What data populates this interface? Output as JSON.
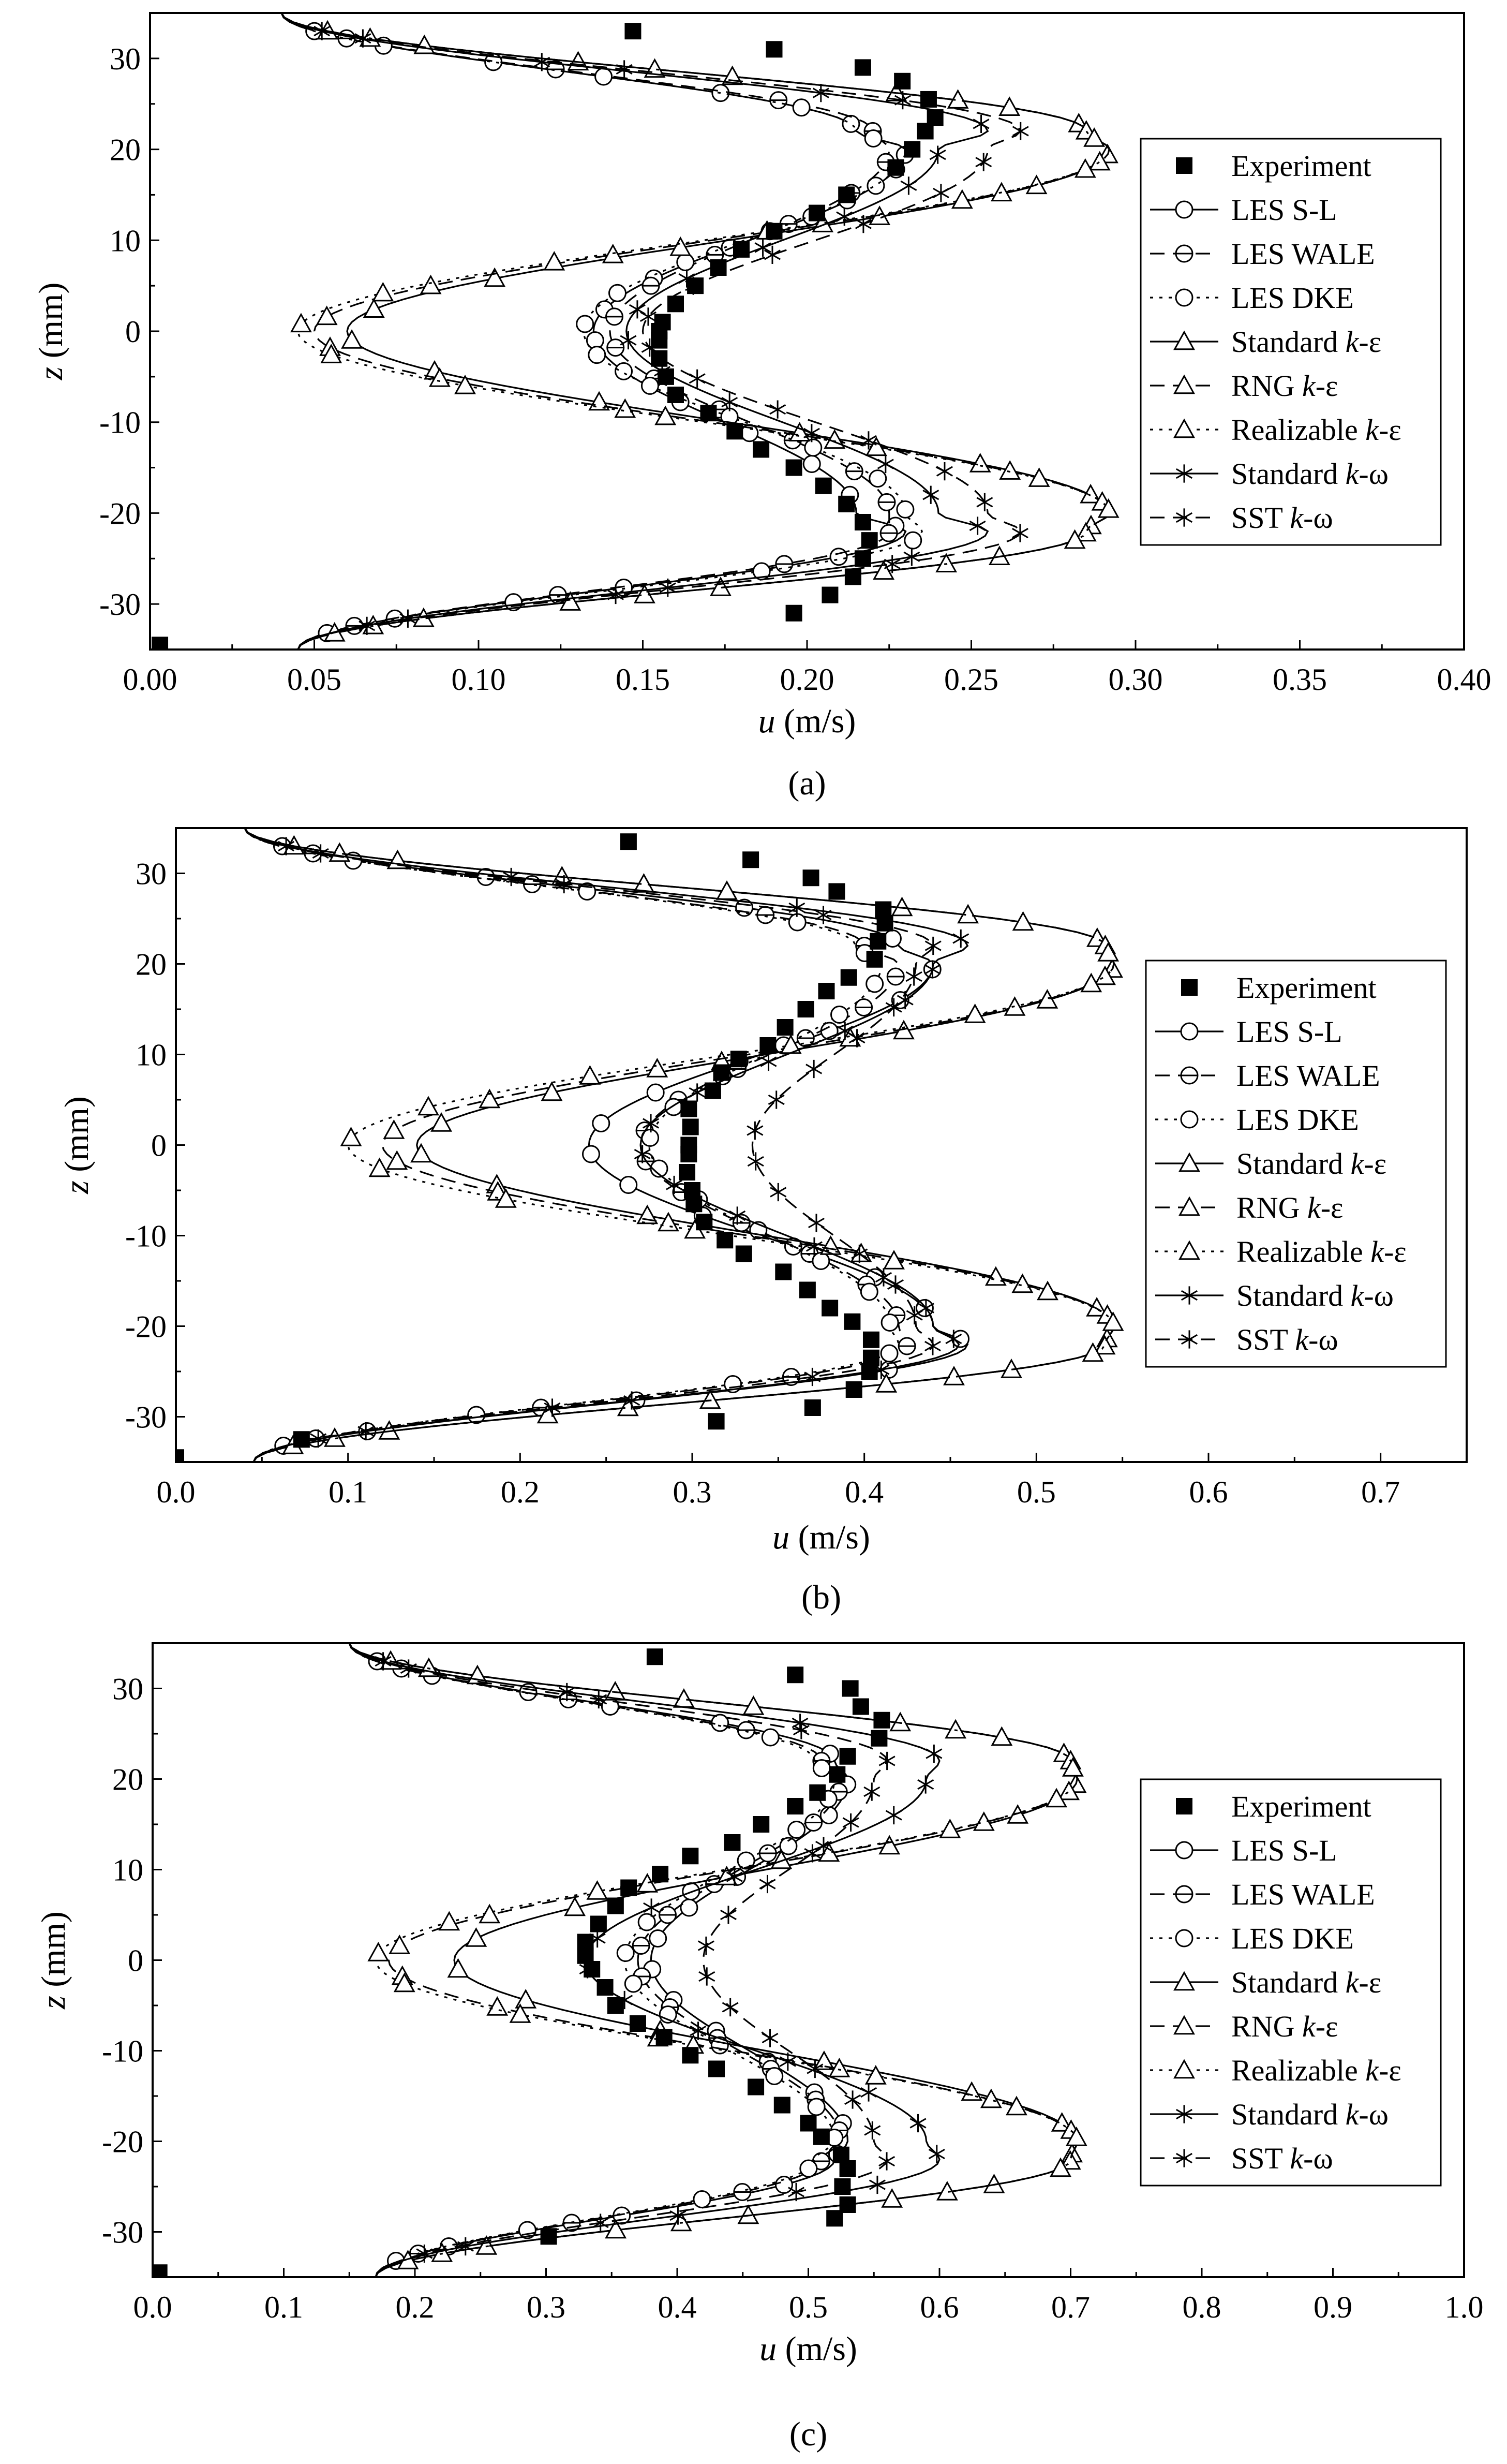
{
  "chart_data": [
    {
      "type": "line",
      "caption": "(a)",
      "xlabel_var": "u",
      "xlabel_unit": " (m/s)",
      "ylabel_var": "z",
      "ylabel_unit": " (mm)",
      "xlim": [
        0,
        0.4
      ],
      "ylim": [
        -35,
        35
      ],
      "xticks": [
        0.0,
        0.05,
        0.1,
        0.15,
        0.2,
        0.25,
        0.3,
        0.35,
        0.4
      ],
      "xtick_labels": [
        "0.00",
        "0.05",
        "0.10",
        "0.15",
        "0.20",
        "0.25",
        "0.30",
        "0.35",
        "0.40"
      ],
      "yticks": [
        -30,
        -20,
        -10,
        0,
        10,
        20,
        30
      ],
      "ytick_labels": [
        "-30",
        "-20",
        "-10",
        "0",
        "10",
        "20",
        "30"
      ],
      "legend_position": "right",
      "experiment": {
        "name": "Experiment",
        "z": [
          33,
          31,
          29,
          27.5,
          25.5,
          23.5,
          22,
          20,
          18,
          15,
          13,
          11,
          9,
          7,
          5,
          3,
          1,
          0,
          -1,
          -3,
          -5,
          -7,
          -9,
          -11,
          -13,
          -15,
          -17,
          -19,
          -21,
          -23,
          -25,
          -27,
          -29,
          -31,
          -34.5
        ],
        "u": [
          0.147,
          0.19,
          0.217,
          0.229,
          0.237,
          0.239,
          0.236,
          0.232,
          0.227,
          0.212,
          0.203,
          0.19,
          0.18,
          0.173,
          0.166,
          0.16,
          0.156,
          0.155,
          0.155,
          0.155,
          0.157,
          0.16,
          0.17,
          0.178,
          0.186,
          0.196,
          0.205,
          0.212,
          0.217,
          0.219,
          0.217,
          0.214,
          0.207,
          0.196,
          0.003
        ]
      },
      "series": [
        {
          "name": "LES S-L",
          "style": "solid",
          "marker": "circle",
          "ctrl": [
            0.04,
            0.215,
            0.23,
            0.135,
            0.215,
            0.23,
            0.045
          ]
        },
        {
          "name": "LES WALE",
          "style": "dashed",
          "marker": "circle-bar",
          "ctrl": [
            0.04,
            0.22,
            0.225,
            0.14,
            0.225,
            0.225,
            0.045
          ]
        },
        {
          "name": "LES DKE",
          "style": "dotted",
          "marker": "circle",
          "ctrl": [
            0.04,
            0.215,
            0.23,
            0.132,
            0.23,
            0.235,
            0.045
          ]
        },
        {
          "name": "Standard k-ε",
          "style": "solid",
          "marker": "triangle",
          "ctrl": [
            0.04,
            0.285,
            0.292,
            0.06,
            0.292,
            0.285,
            0.045
          ]
        },
        {
          "name": "RNG k-ε",
          "style": "dashed",
          "marker": "triangle",
          "ctrl": [
            0.04,
            0.285,
            0.292,
            0.05,
            0.292,
            0.285,
            0.045
          ]
        },
        {
          "name": "Realizable k-ε",
          "style": "dotted",
          "marker": "triangle",
          "ctrl": [
            0.04,
            0.285,
            0.292,
            0.045,
            0.292,
            0.285,
            0.045
          ]
        },
        {
          "name": "Standard k-ω",
          "style": "solid",
          "marker": "star",
          "ctrl": [
            0.04,
            0.255,
            0.24,
            0.145,
            0.24,
            0.255,
            0.045
          ]
        },
        {
          "name": "SST k-ω",
          "style": "dashed",
          "marker": "star",
          "ctrl": [
            0.04,
            0.265,
            0.255,
            0.15,
            0.255,
            0.265,
            0.045
          ]
        }
      ]
    },
    {
      "type": "line",
      "caption": "(b)",
      "xlabel_var": "u",
      "xlabel_unit": " (m/s)",
      "ylabel_var": "z",
      "ylabel_unit": " (mm)",
      "xlim": [
        0,
        0.75
      ],
      "ylim": [
        -35,
        35
      ],
      "xticks": [
        0.0,
        0.1,
        0.2,
        0.3,
        0.4,
        0.5,
        0.6,
        0.7
      ],
      "xtick_labels": [
        "0.0",
        "0.1",
        "0.2",
        "0.3",
        "0.4",
        "0.5",
        "0.6",
        "0.7"
      ],
      "yticks": [
        -30,
        -20,
        -10,
        0,
        10,
        20,
        30
      ],
      "ytick_labels": [
        "-30",
        "-20",
        "-10",
        "0",
        "10",
        "20",
        "30"
      ],
      "legend_position": "right",
      "experiment": {
        "name": "Experiment",
        "z": [
          33.5,
          31.5,
          29.5,
          28,
          26,
          24.5,
          22.5,
          20.5,
          18.5,
          17,
          15,
          13,
          11,
          9.5,
          8,
          6,
          4,
          2,
          0,
          -1,
          -3,
          -5,
          -6.5,
          -8.5,
          -10.5,
          -12,
          -14,
          -16,
          -18,
          -19.5,
          -21.5,
          -23.5,
          -25,
          -27,
          -29,
          -30.5,
          -32.5,
          -34.5
        ],
        "u": [
          0.263,
          0.334,
          0.369,
          0.384,
          0.411,
          0.412,
          0.408,
          0.406,
          0.391,
          0.378,
          0.366,
          0.354,
          0.344,
          0.327,
          0.317,
          0.312,
          0.298,
          0.299,
          0.298,
          0.298,
          0.297,
          0.3,
          0.301,
          0.307,
          0.319,
          0.33,
          0.353,
          0.367,
          0.38,
          0.393,
          0.404,
          0.404,
          0.403,
          0.394,
          0.37,
          0.314,
          0.073,
          0.0
        ]
      },
      "series": [
        {
          "name": "LES S-L",
          "style": "solid",
          "marker": "circle",
          "ctrl": [
            0.04,
            0.42,
            0.44,
            0.24,
            0.44,
            0.46,
            0.045
          ]
        },
        {
          "name": "LES WALE",
          "style": "dashed",
          "marker": "circle-bar",
          "ctrl": [
            0.04,
            0.4,
            0.42,
            0.27,
            0.42,
            0.425,
            0.045
          ]
        },
        {
          "name": "LES DKE",
          "style": "dotted",
          "marker": "circle",
          "ctrl": [
            0.04,
            0.395,
            0.41,
            0.275,
            0.415,
            0.42,
            0.045
          ]
        },
        {
          "name": "Standard k-ε",
          "style": "solid",
          "marker": "triangle",
          "ctrl": [
            0.04,
            0.54,
            0.545,
            0.14,
            0.545,
            0.54,
            0.045
          ]
        },
        {
          "name": "RNG k-ε",
          "style": "dashed",
          "marker": "triangle",
          "ctrl": [
            0.04,
            0.54,
            0.545,
            0.12,
            0.545,
            0.54,
            0.045
          ]
        },
        {
          "name": "Realizable k-ε",
          "style": "dotted",
          "marker": "triangle",
          "ctrl": [
            0.04,
            0.54,
            0.545,
            0.1,
            0.545,
            0.54,
            0.045
          ]
        },
        {
          "name": "Standard k-ω",
          "style": "solid",
          "marker": "star",
          "ctrl": [
            0.04,
            0.46,
            0.44,
            0.27,
            0.44,
            0.455,
            0.045
          ]
        },
        {
          "name": "SST k-ω",
          "style": "dashed",
          "marker": "star",
          "ctrl": [
            0.04,
            0.44,
            0.43,
            0.335,
            0.43,
            0.44,
            0.045
          ]
        }
      ]
    },
    {
      "type": "line",
      "caption": "(c)",
      "xlabel_var": "u",
      "xlabel_unit": " (m/s)",
      "ylabel_var": "z",
      "ylabel_unit": " (mm)",
      "xlim": [
        0,
        1.0
      ],
      "ylim": [
        -35,
        35
      ],
      "xticks": [
        0.0,
        0.1,
        0.2,
        0.3,
        0.4,
        0.5,
        0.6,
        0.7,
        0.8,
        0.9,
        1.0
      ],
      "xtick_labels": [
        "0.0",
        "0.1",
        "0.2",
        "0.3",
        "0.4",
        "0.5",
        "0.6",
        "0.7",
        "0.8",
        "0.9",
        "1.0"
      ],
      "yticks": [
        -30,
        -20,
        -10,
        0,
        10,
        20,
        30
      ],
      "ytick_labels": [
        "-30",
        "-20",
        "-10",
        "0",
        "10",
        "20",
        "30"
      ],
      "legend_position": "right",
      "experiment": {
        "name": "Experiment",
        "z": [
          33.5,
          31.5,
          30,
          28,
          26.5,
          24.5,
          22.5,
          20.5,
          18.5,
          17,
          15,
          13,
          11.5,
          9.5,
          8,
          6,
          4,
          2,
          0.5,
          -1,
          -3,
          -5,
          -7,
          -8.5,
          -10.5,
          -12,
          -14,
          -16,
          -18,
          -19.5,
          -21.5,
          -23,
          -25,
          -27,
          -28.5,
          -30.5,
          -34.5
        ],
        "u": [
          0.383,
          0.49,
          0.532,
          0.54,
          0.556,
          0.554,
          0.53,
          0.522,
          0.507,
          0.49,
          0.464,
          0.442,
          0.41,
          0.387,
          0.363,
          0.353,
          0.34,
          0.33,
          0.33,
          0.335,
          0.345,
          0.353,
          0.37,
          0.39,
          0.41,
          0.43,
          0.46,
          0.48,
          0.5,
          0.51,
          0.525,
          0.53,
          0.526,
          0.53,
          0.52,
          0.302,
          0.005
        ]
      },
      "series": [
        {
          "name": "LES S-L",
          "style": "solid",
          "marker": "circle",
          "ctrl": [
            0.15,
            0.52,
            0.53,
            0.38,
            0.53,
            0.52,
            0.17
          ]
        },
        {
          "name": "LES WALE",
          "style": "dashed",
          "marker": "circle-bar",
          "ctrl": [
            0.15,
            0.51,
            0.525,
            0.37,
            0.525,
            0.51,
            0.17
          ]
        },
        {
          "name": "LES DKE",
          "style": "dotted",
          "marker": "circle",
          "ctrl": [
            0.15,
            0.505,
            0.52,
            0.36,
            0.52,
            0.505,
            0.17
          ]
        },
        {
          "name": "Standard k-ε",
          "style": "solid",
          "marker": "triangle",
          "ctrl": [
            0.15,
            0.7,
            0.705,
            0.23,
            0.705,
            0.7,
            0.17
          ]
        },
        {
          "name": "RNG k-ε",
          "style": "dashed",
          "marker": "triangle",
          "ctrl": [
            0.15,
            0.7,
            0.705,
            0.18,
            0.705,
            0.7,
            0.17
          ]
        },
        {
          "name": "Realizable k-ε",
          "style": "dotted",
          "marker": "triangle",
          "ctrl": [
            0.15,
            0.7,
            0.705,
            0.17,
            0.705,
            0.7,
            0.17
          ]
        },
        {
          "name": "Standard k-ω",
          "style": "solid",
          "marker": "star",
          "ctrl": [
            0.15,
            0.6,
            0.59,
            0.33,
            0.59,
            0.6,
            0.17
          ]
        },
        {
          "name": "SST k-ω",
          "style": "dashed",
          "marker": "star",
          "ctrl": [
            0.15,
            0.56,
            0.55,
            0.42,
            0.55,
            0.56,
            0.17
          ]
        }
      ]
    }
  ]
}
